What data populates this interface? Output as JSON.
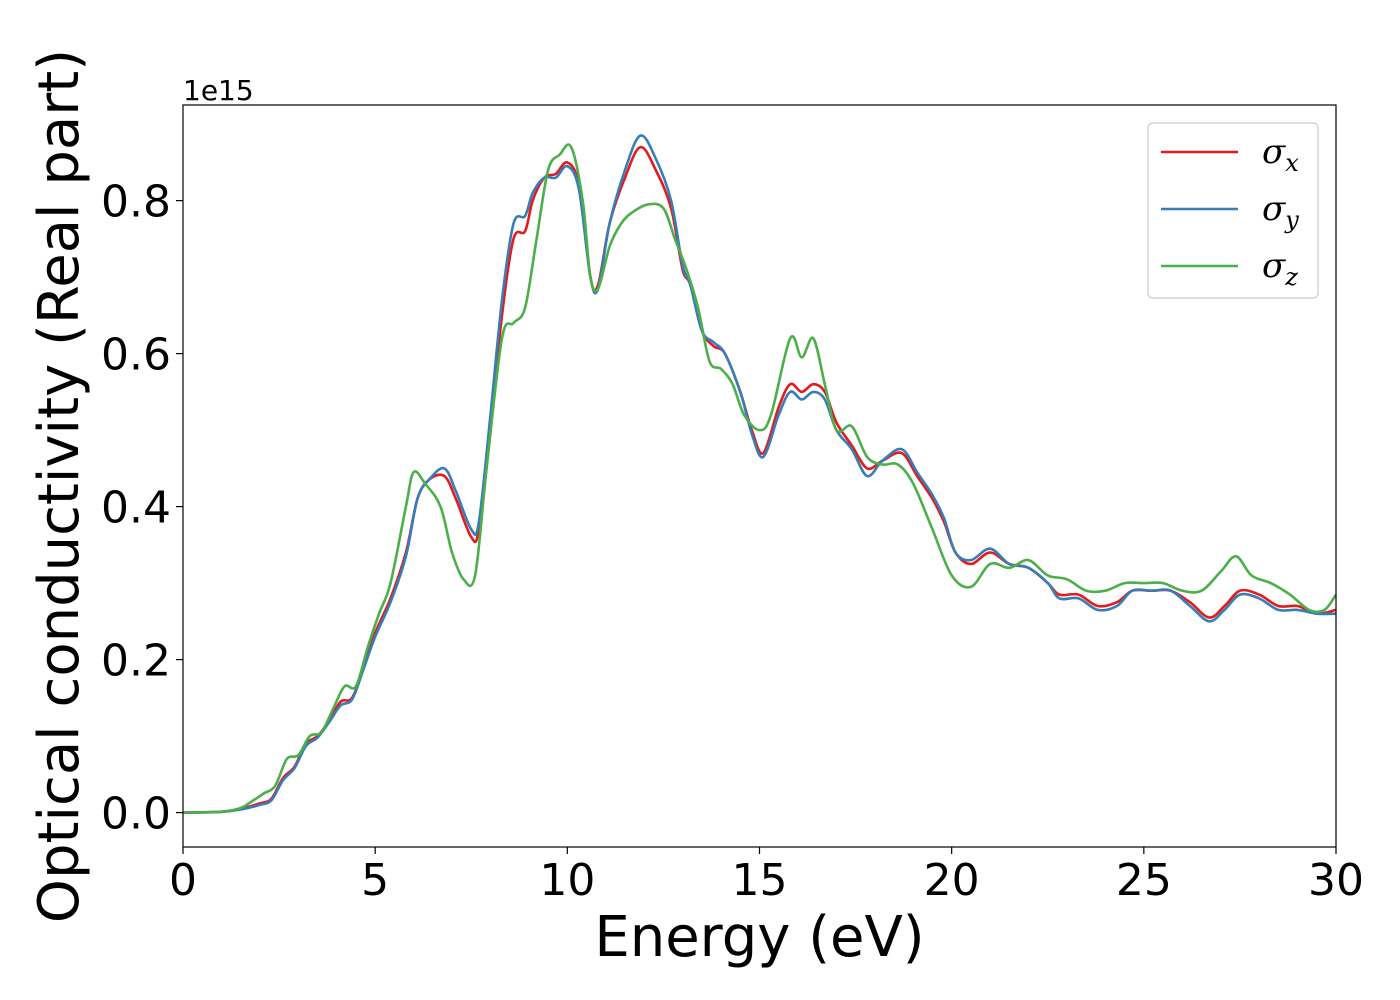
{
  "chart_data": {
    "type": "line",
    "title": "",
    "xlabel": "Energy (eV)",
    "ylabel": "Optical conductivity (Real part)",
    "y_offset_label": "1e15",
    "xlim": [
      0,
      30
    ],
    "ylim": [
      -0.045,
      0.925
    ],
    "x_ticks": [
      0,
      5,
      10,
      15,
      20,
      25,
      30
    ],
    "x_tick_labels": [
      "0",
      "5",
      "10",
      "15",
      "20",
      "25",
      "30"
    ],
    "y_ticks": [
      0.0,
      0.2,
      0.4,
      0.6,
      0.8
    ],
    "y_tick_labels": [
      "0.0",
      "0.2",
      "0.4",
      "0.6",
      "0.8"
    ],
    "grid": false,
    "legend_position": "top-right",
    "series": [
      {
        "name": "σx",
        "symbol": "σ",
        "subscript": "x",
        "color": "#e41a1c",
        "points": [
          [
            0,
            0
          ],
          [
            1,
            0.001
          ],
          [
            1.5,
            0.005
          ],
          [
            2,
            0.012
          ],
          [
            2.3,
            0.018
          ],
          [
            2.6,
            0.045
          ],
          [
            2.9,
            0.06
          ],
          [
            3.2,
            0.09
          ],
          [
            3.5,
            0.1
          ],
          [
            3.8,
            0.12
          ],
          [
            4.1,
            0.145
          ],
          [
            4.4,
            0.15
          ],
          [
            4.7,
            0.19
          ],
          [
            5,
            0.235
          ],
          [
            5.4,
            0.28
          ],
          [
            5.8,
            0.34
          ],
          [
            6.1,
            0.41
          ],
          [
            6.4,
            0.435
          ],
          [
            6.8,
            0.44
          ],
          [
            7.1,
            0.41
          ],
          [
            7.5,
            0.36
          ],
          [
            7.7,
            0.37
          ],
          [
            8,
            0.5
          ],
          [
            8.3,
            0.65
          ],
          [
            8.6,
            0.75
          ],
          [
            8.9,
            0.76
          ],
          [
            9.1,
            0.8
          ],
          [
            9.4,
            0.83
          ],
          [
            9.7,
            0.835
          ],
          [
            10,
            0.85
          ],
          [
            10.3,
            0.82
          ],
          [
            10.6,
            0.7
          ],
          [
            10.8,
            0.69
          ],
          [
            11.1,
            0.77
          ],
          [
            11.5,
            0.83
          ],
          [
            11.9,
            0.87
          ],
          [
            12.3,
            0.84
          ],
          [
            12.7,
            0.79
          ],
          [
            13,
            0.71
          ],
          [
            13.2,
            0.69
          ],
          [
            13.5,
            0.63
          ],
          [
            13.8,
            0.61
          ],
          [
            14.1,
            0.6
          ],
          [
            14.5,
            0.55
          ],
          [
            14.8,
            0.5
          ],
          [
            15.1,
            0.47
          ],
          [
            15.5,
            0.53
          ],
          [
            15.8,
            0.56
          ],
          [
            16.1,
            0.55
          ],
          [
            16.4,
            0.56
          ],
          [
            16.7,
            0.55
          ],
          [
            17,
            0.51
          ],
          [
            17.4,
            0.48
          ],
          [
            17.8,
            0.45
          ],
          [
            18.2,
            0.46
          ],
          [
            18.7,
            0.47
          ],
          [
            19.1,
            0.44
          ],
          [
            19.5,
            0.41
          ],
          [
            19.8,
            0.38
          ],
          [
            20.1,
            0.34
          ],
          [
            20.5,
            0.325
          ],
          [
            21,
            0.34
          ],
          [
            21.5,
            0.325
          ],
          [
            22,
            0.32
          ],
          [
            22.5,
            0.3
          ],
          [
            22.8,
            0.285
          ],
          [
            23.3,
            0.285
          ],
          [
            23.8,
            0.27
          ],
          [
            24.3,
            0.275
          ],
          [
            24.7,
            0.29
          ],
          [
            25.2,
            0.29
          ],
          [
            25.7,
            0.29
          ],
          [
            26.2,
            0.275
          ],
          [
            26.7,
            0.255
          ],
          [
            27.1,
            0.27
          ],
          [
            27.5,
            0.29
          ],
          [
            28,
            0.285
          ],
          [
            28.5,
            0.27
          ],
          [
            29,
            0.27
          ],
          [
            29.5,
            0.26
          ],
          [
            30,
            0.265
          ]
        ]
      },
      {
        "name": "σy",
        "symbol": "σ",
        "subscript": "y",
        "color": "#377eb8",
        "points": [
          [
            0,
            0
          ],
          [
            1,
            0.001
          ],
          [
            1.5,
            0.004
          ],
          [
            2,
            0.01
          ],
          [
            2.3,
            0.016
          ],
          [
            2.6,
            0.042
          ],
          [
            2.9,
            0.058
          ],
          [
            3.2,
            0.087
          ],
          [
            3.5,
            0.098
          ],
          [
            3.8,
            0.118
          ],
          [
            4.1,
            0.14
          ],
          [
            4.4,
            0.148
          ],
          [
            4.7,
            0.188
          ],
          [
            5,
            0.23
          ],
          [
            5.4,
            0.275
          ],
          [
            5.8,
            0.335
          ],
          [
            6.1,
            0.41
          ],
          [
            6.4,
            0.435
          ],
          [
            6.8,
            0.45
          ],
          [
            7.1,
            0.42
          ],
          [
            7.5,
            0.37
          ],
          [
            7.7,
            0.38
          ],
          [
            8,
            0.52
          ],
          [
            8.3,
            0.67
          ],
          [
            8.6,
            0.77
          ],
          [
            8.9,
            0.78
          ],
          [
            9.1,
            0.81
          ],
          [
            9.4,
            0.83
          ],
          [
            9.7,
            0.83
          ],
          [
            10,
            0.845
          ],
          [
            10.3,
            0.815
          ],
          [
            10.6,
            0.7
          ],
          [
            10.8,
            0.685
          ],
          [
            11.1,
            0.77
          ],
          [
            11.5,
            0.84
          ],
          [
            11.9,
            0.885
          ],
          [
            12.3,
            0.855
          ],
          [
            12.7,
            0.8
          ],
          [
            13,
            0.715
          ],
          [
            13.2,
            0.69
          ],
          [
            13.5,
            0.63
          ],
          [
            13.8,
            0.615
          ],
          [
            14.1,
            0.6
          ],
          [
            14.5,
            0.55
          ],
          [
            14.8,
            0.495
          ],
          [
            15.1,
            0.465
          ],
          [
            15.5,
            0.52
          ],
          [
            15.8,
            0.55
          ],
          [
            16.1,
            0.54
          ],
          [
            16.4,
            0.55
          ],
          [
            16.7,
            0.54
          ],
          [
            17,
            0.5
          ],
          [
            17.4,
            0.475
          ],
          [
            17.8,
            0.44
          ],
          [
            18.2,
            0.46
          ],
          [
            18.7,
            0.475
          ],
          [
            19.1,
            0.445
          ],
          [
            19.5,
            0.415
          ],
          [
            19.8,
            0.385
          ],
          [
            20.1,
            0.34
          ],
          [
            20.5,
            0.33
          ],
          [
            21,
            0.345
          ],
          [
            21.5,
            0.325
          ],
          [
            22,
            0.32
          ],
          [
            22.5,
            0.3
          ],
          [
            22.8,
            0.28
          ],
          [
            23.3,
            0.28
          ],
          [
            23.8,
            0.265
          ],
          [
            24.3,
            0.27
          ],
          [
            24.7,
            0.29
          ],
          [
            25.2,
            0.29
          ],
          [
            25.7,
            0.29
          ],
          [
            26.2,
            0.27
          ],
          [
            26.7,
            0.25
          ],
          [
            27.1,
            0.265
          ],
          [
            27.5,
            0.285
          ],
          [
            28,
            0.28
          ],
          [
            28.5,
            0.265
          ],
          [
            29,
            0.265
          ],
          [
            29.5,
            0.26
          ],
          [
            30,
            0.26
          ]
        ]
      },
      {
        "name": "σz",
        "symbol": "σ",
        "subscript": "z",
        "color": "#4daf4a",
        "points": [
          [
            0,
            0
          ],
          [
            1,
            0.001
          ],
          [
            1.5,
            0.006
          ],
          [
            1.8,
            0.015
          ],
          [
            2.1,
            0.025
          ],
          [
            2.4,
            0.035
          ],
          [
            2.7,
            0.07
          ],
          [
            3,
            0.075
          ],
          [
            3.3,
            0.1
          ],
          [
            3.6,
            0.105
          ],
          [
            3.9,
            0.135
          ],
          [
            4.2,
            0.165
          ],
          [
            4.5,
            0.165
          ],
          [
            4.8,
            0.215
          ],
          [
            5.1,
            0.26
          ],
          [
            5.4,
            0.3
          ],
          [
            5.8,
            0.4
          ],
          [
            6,
            0.445
          ],
          [
            6.3,
            0.43
          ],
          [
            6.7,
            0.4
          ],
          [
            7,
            0.34
          ],
          [
            7.3,
            0.305
          ],
          [
            7.6,
            0.31
          ],
          [
            7.9,
            0.45
          ],
          [
            8.3,
            0.62
          ],
          [
            8.6,
            0.64
          ],
          [
            8.9,
            0.66
          ],
          [
            9.2,
            0.75
          ],
          [
            9.5,
            0.84
          ],
          [
            9.8,
            0.86
          ],
          [
            10.1,
            0.87
          ],
          [
            10.4,
            0.8
          ],
          [
            10.6,
            0.7
          ],
          [
            10.8,
            0.685
          ],
          [
            11.1,
            0.74
          ],
          [
            11.4,
            0.77
          ],
          [
            11.7,
            0.785
          ],
          [
            12.1,
            0.795
          ],
          [
            12.5,
            0.79
          ],
          [
            12.8,
            0.75
          ],
          [
            13.1,
            0.71
          ],
          [
            13.4,
            0.66
          ],
          [
            13.7,
            0.59
          ],
          [
            14,
            0.58
          ],
          [
            14.3,
            0.56
          ],
          [
            14.6,
            0.52
          ],
          [
            15,
            0.5
          ],
          [
            15.3,
            0.52
          ],
          [
            15.8,
            0.62
          ],
          [
            16.1,
            0.595
          ],
          [
            16.4,
            0.62
          ],
          [
            16.7,
            0.56
          ],
          [
            17,
            0.5
          ],
          [
            17.4,
            0.505
          ],
          [
            17.8,
            0.465
          ],
          [
            18.2,
            0.455
          ],
          [
            18.6,
            0.455
          ],
          [
            19,
            0.43
          ],
          [
            19.5,
            0.37
          ],
          [
            20,
            0.31
          ],
          [
            20.5,
            0.295
          ],
          [
            21,
            0.325
          ],
          [
            21.5,
            0.32
          ],
          [
            22,
            0.33
          ],
          [
            22.5,
            0.31
          ],
          [
            23,
            0.305
          ],
          [
            23.5,
            0.29
          ],
          [
            24,
            0.29
          ],
          [
            24.5,
            0.3
          ],
          [
            25,
            0.3
          ],
          [
            25.5,
            0.3
          ],
          [
            26,
            0.29
          ],
          [
            26.5,
            0.29
          ],
          [
            27,
            0.315
          ],
          [
            27.4,
            0.335
          ],
          [
            27.8,
            0.31
          ],
          [
            28.3,
            0.3
          ],
          [
            28.8,
            0.285
          ],
          [
            29.3,
            0.265
          ],
          [
            29.7,
            0.265
          ],
          [
            30,
            0.285
          ]
        ]
      }
    ]
  }
}
